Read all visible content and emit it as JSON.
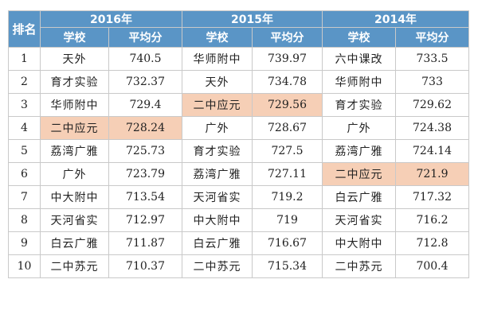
{
  "header": {
    "rank_label": "排名",
    "years": [
      "2016年",
      "2015年",
      "2014年"
    ],
    "school_label": "学校",
    "score_label": "平均分"
  },
  "rows": [
    {
      "rank": "1",
      "y2016": {
        "school": "天外",
        "score": "740.5"
      },
      "y2015": {
        "school": "华师附中",
        "score": "739.97"
      },
      "y2014": {
        "school": "六中课改",
        "score": "733.5"
      }
    },
    {
      "rank": "2",
      "y2016": {
        "school": "育才实验",
        "score": "732.37"
      },
      "y2015": {
        "school": "天外",
        "score": "734.78"
      },
      "y2014": {
        "school": "华师附中",
        "score": "733"
      }
    },
    {
      "rank": "3",
      "y2016": {
        "school": "华师附中",
        "score": "729.4"
      },
      "y2015": {
        "school": "二中应元",
        "score": "729.56"
      },
      "y2014": {
        "school": "育才实验",
        "score": "729.62"
      }
    },
    {
      "rank": "4",
      "y2016": {
        "school": "二中应元",
        "score": "728.24"
      },
      "y2015": {
        "school": "广外",
        "score": "728.67"
      },
      "y2014": {
        "school": "广外",
        "score": "724.38"
      }
    },
    {
      "rank": "5",
      "y2016": {
        "school": "荔湾广雅",
        "score": "725.73"
      },
      "y2015": {
        "school": "育才实验",
        "score": "727.5"
      },
      "y2014": {
        "school": "荔湾广雅",
        "score": "724.14"
      }
    },
    {
      "rank": "6",
      "y2016": {
        "school": "广外",
        "score": "723.79"
      },
      "y2015": {
        "school": "荔湾广雅",
        "score": "727.11"
      },
      "y2014": {
        "school": "二中应元",
        "score": "721.9"
      }
    },
    {
      "rank": "7",
      "y2016": {
        "school": "中大附中",
        "score": "713.54"
      },
      "y2015": {
        "school": "天河省实",
        "score": "719.2"
      },
      "y2014": {
        "school": "白云广雅",
        "score": "717.32"
      }
    },
    {
      "rank": "8",
      "y2016": {
        "school": "天河省实",
        "score": "712.97"
      },
      "y2015": {
        "school": "中大附中",
        "score": "719"
      },
      "y2014": {
        "school": "天河省实",
        "score": "716.2"
      }
    },
    {
      "rank": "9",
      "y2016": {
        "school": "白云广雅",
        "score": "711.87"
      },
      "y2015": {
        "school": "白云广雅",
        "score": "716.67"
      },
      "y2014": {
        "school": "中大附中",
        "score": "712.8"
      }
    },
    {
      "rank": "10",
      "y2016": {
        "school": "二中苏元",
        "score": "710.37"
      },
      "y2015": {
        "school": "二中苏元",
        "score": "715.34"
      },
      "y2014": {
        "school": "二中苏元",
        "score": "700.4"
      }
    }
  ],
  "highlight_color": "#f6cfb6",
  "header_color": "#5a95c6"
}
